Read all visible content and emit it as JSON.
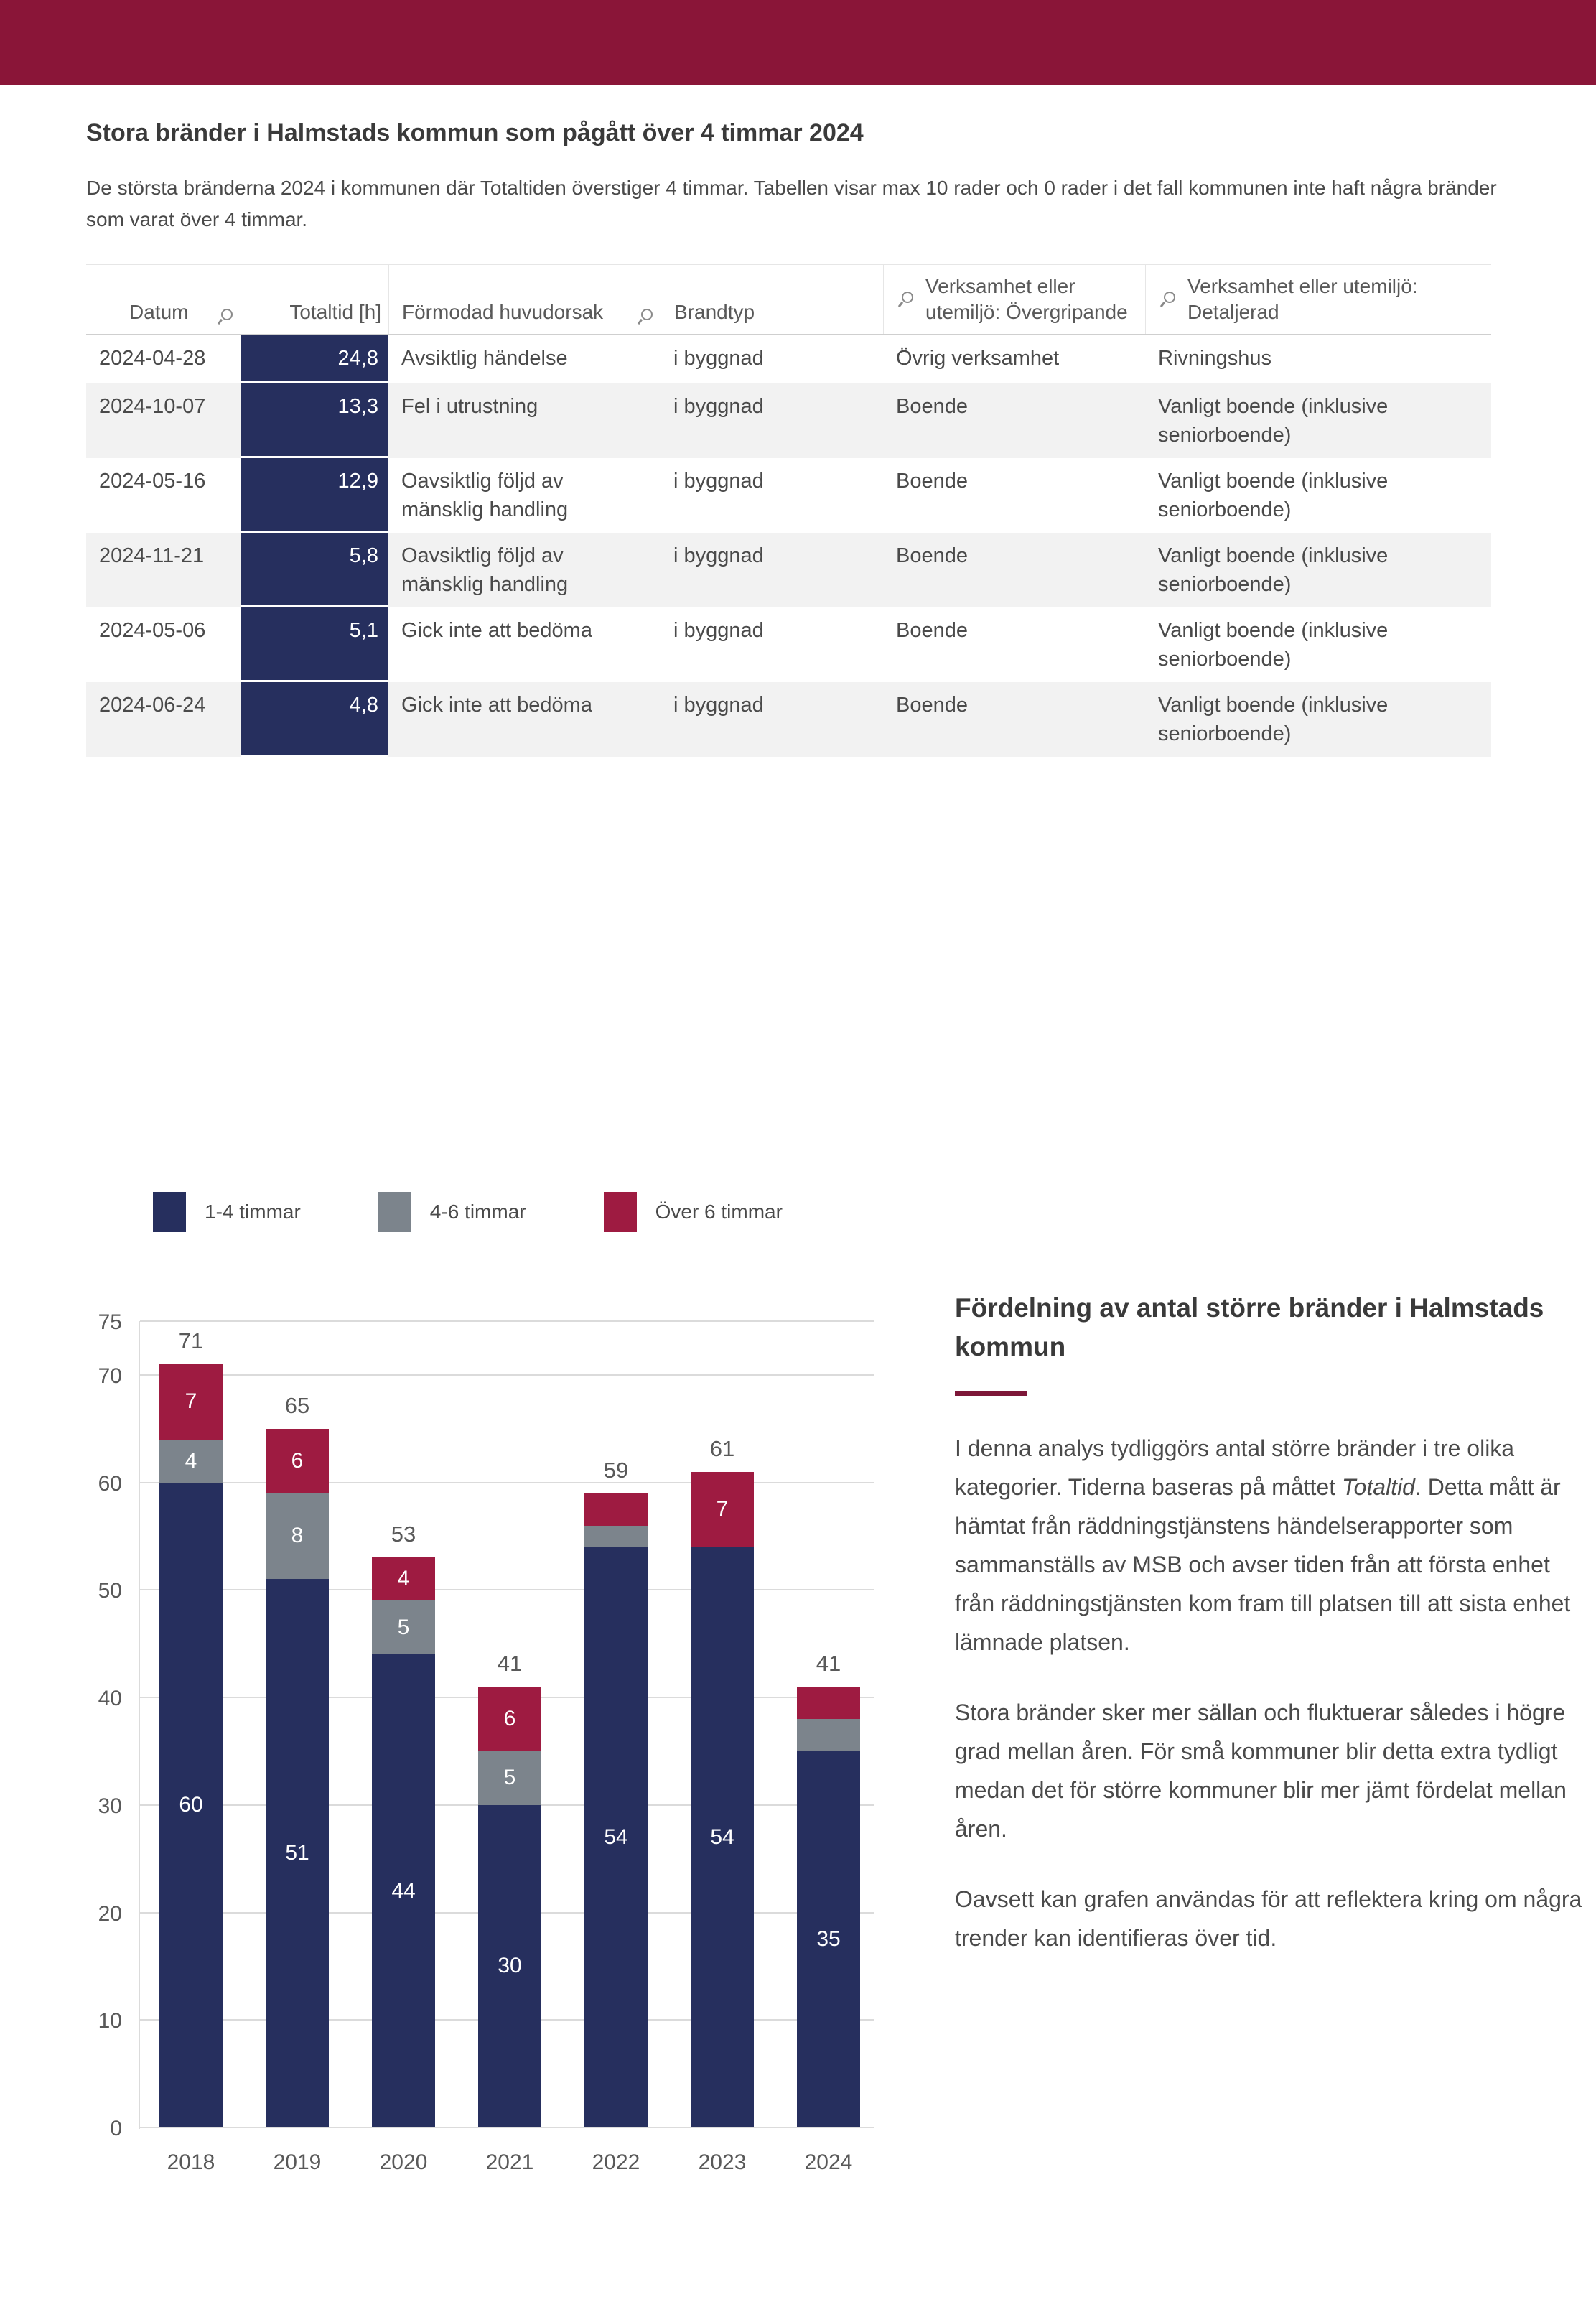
{
  "page": {
    "accent_bar_color": "#8A1538"
  },
  "header": {
    "title": "Stora bränder i Halmstads kommun som pågått över 4 timmar 2024",
    "subtitle": "De största bränderna 2024 i kommunen där Totaltiden överstiger 4 timmar. Tabellen visar max 10 rader och 0 rader i det fall kommunen inte haft några bränder som varat över 4 timmar."
  },
  "table": {
    "columns": [
      "Datum",
      "Totaltid [h]",
      "Förmodad huvudorsak",
      "Brandtyp",
      "Verksamhet eller utemiljö: Övergripande",
      "Verksamhet eller utemiljö: Detaljerad"
    ],
    "search_icon": "magnifier",
    "value_cell_color": "#262F5E",
    "rows": [
      {
        "datum": "2024-04-28",
        "totaltid": "24,8",
        "orsak": "Avsiktlig händelse",
        "brandtyp": "i byggnad",
        "overgripande": "Övrig verksamhet",
        "detaljerad": "Rivningshus"
      },
      {
        "datum": "2024-10-07",
        "totaltid": "13,3",
        "orsak": "Fel i utrustning",
        "brandtyp": "i byggnad",
        "overgripande": "Boende",
        "detaljerad": "Vanligt boende (inklusive seniorboende)"
      },
      {
        "datum": "2024-05-16",
        "totaltid": "12,9",
        "orsak": "Oavsiktlig följd av mänsklig handling",
        "brandtyp": "i byggnad",
        "overgripande": "Boende",
        "detaljerad": "Vanligt boende (inklusive seniorboende)"
      },
      {
        "datum": "2024-11-21",
        "totaltid": "5,8",
        "orsak": "Oavsiktlig följd av mänsklig handling",
        "brandtyp": "i byggnad",
        "overgripande": "Boende",
        "detaljerad": "Vanligt boende (inklusive seniorboende)"
      },
      {
        "datum": "2024-05-06",
        "totaltid": "5,1",
        "orsak": "Gick inte att bedöma",
        "brandtyp": "i byggnad",
        "overgripande": "Boende",
        "detaljerad": "Vanligt boende (inklusive seniorboende)"
      },
      {
        "datum": "2024-06-24",
        "totaltid": "4,8",
        "orsak": "Gick inte att bedöma",
        "brandtyp": "i byggnad",
        "overgripande": "Boende",
        "detaljerad": "Vanligt boende (inklusive seniorboende)"
      }
    ]
  },
  "chart_data": {
    "type": "bar",
    "subtype": "stacked",
    "categories": [
      "2018",
      "2019",
      "2020",
      "2021",
      "2022",
      "2023",
      "2024"
    ],
    "series": [
      {
        "name": "1-4 timmar",
        "color": "#262F5E",
        "values": [
          60,
          51,
          44,
          30,
          54,
          54,
          35
        ]
      },
      {
        "name": "4-6 timmar",
        "color": "#7C848C",
        "values": [
          4,
          8,
          5,
          5,
          2,
          0,
          3
        ]
      },
      {
        "name": "Över 6 timmar",
        "color": "#9E1B41",
        "values": [
          7,
          6,
          4,
          6,
          3,
          7,
          3
        ]
      }
    ],
    "totals": [
      71,
      65,
      53,
      41,
      59,
      61,
      41
    ],
    "title": "",
    "xlabel": "",
    "ylabel": "",
    "ylim": [
      0,
      75
    ],
    "yticks": [
      0,
      10,
      20,
      30,
      40,
      50,
      60,
      70,
      75
    ],
    "grid": "horizontal",
    "legend_position": "top-left",
    "segment_label_min_value": 4
  },
  "sidebar": {
    "heading": "Fördelning av antal större bränder i Halmstads kommun",
    "rule_color": "#7D1738",
    "p1_before": "I denna analys tydliggörs antal större bränder i tre olika kategorier. Tiderna baseras på måttet ",
    "p1_italic": "Totaltid",
    "p1_after": ". Detta mått är hämtat från räddningstjänstens händelserapporter som sammanställs av MSB och avser tiden från att första enhet från räddningstjänsten kom fram till platsen till att sista enhet lämnade platsen.",
    "p2": "Stora bränder sker mer sällan och fluktuerar således i högre grad mellan åren. För små kommuner blir detta extra tydligt medan det för större kommuner blir mer jämt fördelat mellan åren.",
    "p3": "Oavsett kan grafen användas för att reflektera kring om några trender kan identifieras över tid."
  }
}
